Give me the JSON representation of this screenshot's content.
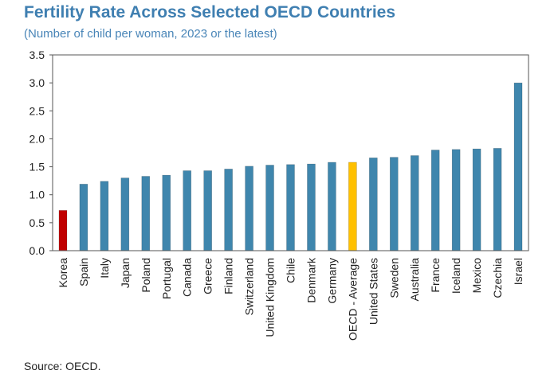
{
  "header": {
    "title": "Fertility Rate Across Selected OECD Countries",
    "subtitle": "(Number of child per woman, 2023 or the latest)"
  },
  "footer": {
    "source": "Source: OECD."
  },
  "colors": {
    "default_bar": "#3f86ad",
    "highlight_korea": "#c00000",
    "highlight_oecd": "#ffc000"
  },
  "chart_data": {
    "type": "bar",
    "title": "Fertility Rate Across Selected OECD Countries",
    "subtitle": "(Number of child per woman, 2023 or the latest)",
    "xlabel": "",
    "ylabel": "",
    "ylim": [
      0,
      3.5
    ],
    "yticks": [
      "0.0",
      "0.5",
      "1.0",
      "1.5",
      "2.0",
      "2.5",
      "3.0",
      "3.5"
    ],
    "grid": false,
    "categories": [
      "Korea",
      "Spain",
      "Italy",
      "Japan",
      "Poland",
      "Portugal",
      "Canada",
      "Greece",
      "Finland",
      "Switzerland",
      "United Kingdom",
      "Chile",
      "Denmark",
      "Germany",
      "OECD - Average",
      "United States",
      "Sweden",
      "Australia",
      "France",
      "Iceland",
      "Mexico",
      "Czechia",
      "Israel"
    ],
    "values": [
      0.72,
      1.19,
      1.24,
      1.3,
      1.33,
      1.35,
      1.43,
      1.43,
      1.46,
      1.51,
      1.53,
      1.54,
      1.55,
      1.58,
      1.58,
      1.66,
      1.67,
      1.7,
      1.8,
      1.81,
      1.82,
      1.83,
      3.0
    ],
    "highlights": {
      "Korea": "#c00000",
      "OECD - Average": "#ffc000"
    }
  }
}
